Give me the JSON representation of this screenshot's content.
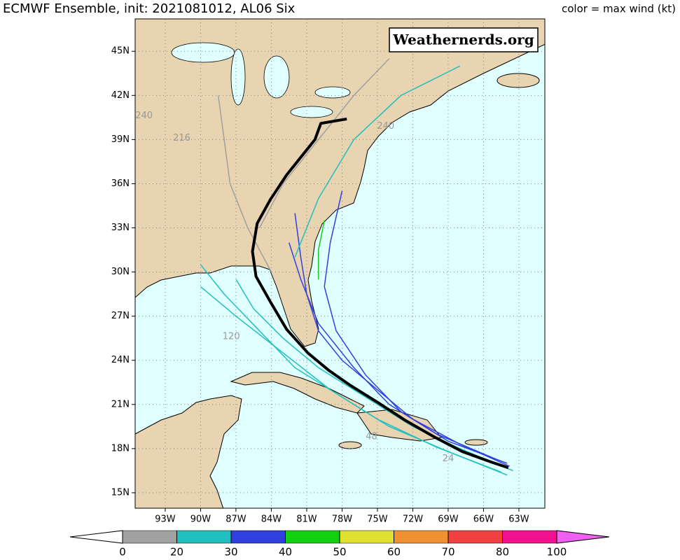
{
  "header": {
    "title": "ECMWF Ensemble, init: 2021081012, AL06 Six",
    "color_note": "color = max wind (kt)"
  },
  "watermark": "Weathernerds.org",
  "map": {
    "lon_range": [
      -95.55,
      -60.8
    ],
    "lat_range": [
      13.95,
      47.2
    ],
    "lat_ticks": [
      {
        "value": 15,
        "label": "15N"
      },
      {
        "value": 18,
        "label": "18N"
      },
      {
        "value": 21,
        "label": "21N"
      },
      {
        "value": 24,
        "label": "24N"
      },
      {
        "value": 27,
        "label": "27N"
      },
      {
        "value": 30,
        "label": "30N"
      },
      {
        "value": 33,
        "label": "33N"
      },
      {
        "value": 36,
        "label": "36N"
      },
      {
        "value": 39,
        "label": "39N"
      },
      {
        "value": 42,
        "label": "42N"
      },
      {
        "value": 45,
        "label": "45N"
      }
    ],
    "lon_ticks": [
      {
        "value": -93,
        "label": "93W"
      },
      {
        "value": -90,
        "label": "90W"
      },
      {
        "value": -87,
        "label": "87W"
      },
      {
        "value": -84,
        "label": "84W"
      },
      {
        "value": -81,
        "label": "81W"
      },
      {
        "value": -78,
        "label": "78W"
      },
      {
        "value": -75,
        "label": "75W"
      },
      {
        "value": -72,
        "label": "72W"
      },
      {
        "value": -69,
        "label": "69W"
      },
      {
        "value": -66,
        "label": "66W"
      },
      {
        "value": -63,
        "label": "63W"
      }
    ],
    "members": [
      {
        "color": "#20c0c0",
        "lon": [
          -63.5,
          -68,
          -72,
          -76,
          -80,
          -83,
          -85.5,
          -87
        ],
        "lat": [
          16.5,
          18,
          19.5,
          21.5,
          23.5,
          25.5,
          27.5,
          29.5
        ]
      },
      {
        "color": "#3040e0",
        "lon": [
          -63.8,
          -68,
          -72,
          -75,
          -78,
          -80,
          -81,
          -81.5,
          -82
        ],
        "lat": [
          16.8,
          18.3,
          20,
          22,
          24,
          26,
          28.5,
          31,
          34
        ]
      },
      {
        "color": "#20c0c0",
        "lon": [
          -64,
          -69,
          -74,
          -78,
          -82,
          -85,
          -88,
          -90
        ],
        "lat": [
          16.2,
          17.8,
          19.5,
          21.5,
          23.5,
          26,
          28.5,
          30.5
        ]
      },
      {
        "color": "#a0a0a0",
        "lon": [
          -84,
          -86,
          -87.5,
          -88,
          -88.5
        ],
        "lat": [
          30,
          33,
          36,
          39,
          42
        ]
      },
      {
        "color": "#20c0c0",
        "lon": [
          -82,
          -80,
          -77,
          -73,
          -68
        ],
        "lat": [
          31,
          35,
          39,
          42,
          44
        ]
      },
      {
        "color": "#3040e0",
        "lon": [
          -64,
          -69,
          -73,
          -76,
          -78.5,
          -79.5,
          -79,
          -78
        ],
        "lat": [
          17,
          18.5,
          20.5,
          23,
          26,
          29,
          32,
          35.5
        ]
      },
      {
        "color": "#10d010",
        "lon": [
          -80,
          -80,
          -79.5
        ],
        "lat": [
          29.5,
          31.5,
          33.5
        ]
      },
      {
        "color": "#20c0c0",
        "lon": [
          -64.5,
          -70,
          -75,
          -79,
          -83,
          -87,
          -90
        ],
        "lat": [
          16.4,
          18.1,
          20,
          22,
          24.5,
          27,
          29
        ]
      },
      {
        "color": "#a0a0a0",
        "lon": [
          -85,
          -83,
          -80,
          -77,
          -74
        ],
        "lat": [
          33,
          36,
          39,
          42,
          44.5
        ]
      },
      {
        "color": "#3040e0",
        "lon": [
          -65,
          -70,
          -74,
          -77,
          -80,
          -81.5,
          -82.5
        ],
        "lat": [
          17.3,
          19,
          21,
          23.5,
          26.5,
          29.5,
          32
        ]
      }
    ],
    "mean_track": {
      "color": "#000000",
      "lon": [
        -63.9,
        -65.4,
        -67.8,
        -70.2,
        -72.6,
        -74.9,
        -77.3,
        -79.1,
        -80.9,
        -82.7,
        -84.1,
        -85.3,
        -85.6,
        -85.2,
        -84.1,
        -82.7,
        -81.5,
        -80.3,
        -79.8,
        -77.6
      ],
      "lat": [
        16.7,
        17.1,
        17.8,
        18.8,
        19.9,
        21.1,
        22.3,
        23.3,
        24.5,
        26.1,
        28.0,
        29.7,
        31.4,
        33.3,
        34.9,
        36.6,
        37.8,
        39.0,
        40.1,
        40.4
      ]
    },
    "hour_labels": [
      {
        "label": "48",
        "lon": -75.5,
        "lat": 18.8
      },
      {
        "label": "240",
        "lon": -94.8,
        "lat": 40.6
      },
      {
        "label": "216",
        "lon": -91.6,
        "lat": 39.1
      },
      {
        "label": "120",
        "lon": -87.4,
        "lat": 25.6
      },
      {
        "label": "24",
        "lon": -69.0,
        "lat": 17.3
      },
      {
        "label": "240",
        "lon": -74.3,
        "lat": 39.9
      }
    ]
  },
  "colorbar": {
    "bounds": [
      0,
      20,
      30,
      40,
      50,
      60,
      70,
      80,
      100
    ],
    "colors": [
      "#a0a0a0",
      "#20c0c0",
      "#3040e0",
      "#10d010",
      "#e0e030",
      "#f09030",
      "#f04040",
      "#f01090"
    ],
    "under_color": "#ffffff",
    "over_color": "#f060f0"
  }
}
